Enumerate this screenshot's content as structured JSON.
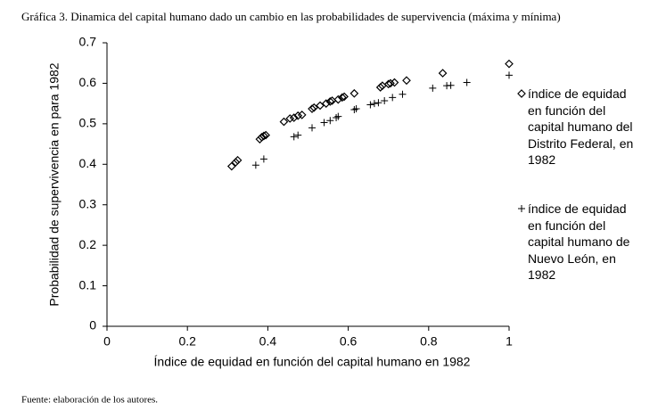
{
  "chart_data": {
    "type": "scatter",
    "title": "Gráfica 3. Dinamica del capital humano dado un cambio en las probabilidades de supervivencia (máxima y mínima)",
    "x_label": "Índice de equidad en función del capital humano en 1982",
    "y_label": "Probabilidad de supervivencia en para 1982",
    "source": "Fuente: elaboración de los autores.",
    "xlim": [
      0,
      1
    ],
    "xticks": [
      0,
      0.2,
      0.4,
      0.6,
      0.8,
      1
    ],
    "ylim": [
      0,
      0.7
    ],
    "yticks": [
      0,
      0.1,
      0.2,
      0.3,
      0.4,
      0.5,
      0.6,
      0.7
    ],
    "grid": false,
    "legend": "right",
    "series": [
      {
        "name": "índice de equidad en función del capital humano del Distrito Federal, en 1982",
        "marker": "diamond",
        "color": "#000000",
        "x": [
          0.31,
          0.32,
          0.325,
          0.38,
          0.385,
          0.39,
          0.395,
          0.44,
          0.455,
          0.465,
          0.475,
          0.485,
          0.51,
          0.515,
          0.53,
          0.545,
          0.555,
          0.56,
          0.575,
          0.585,
          0.59,
          0.615,
          0.68,
          0.685,
          0.7,
          0.705,
          0.715,
          0.745,
          0.835,
          1.0
        ],
        "values": [
          0.395,
          0.405,
          0.41,
          0.462,
          0.467,
          0.47,
          0.472,
          0.505,
          0.513,
          0.515,
          0.52,
          0.522,
          0.537,
          0.54,
          0.545,
          0.55,
          0.555,
          0.557,
          0.56,
          0.565,
          0.567,
          0.575,
          0.59,
          0.594,
          0.598,
          0.6,
          0.602,
          0.607,
          0.625,
          0.648
        ]
      },
      {
        "name": "índice de equidad en función del capital humano de Nuevo León, en 1982",
        "marker": "plus",
        "color": "#000000",
        "x": [
          0.37,
          0.39,
          0.465,
          0.475,
          0.51,
          0.54,
          0.555,
          0.57,
          0.575,
          0.615,
          0.62,
          0.655,
          0.665,
          0.675,
          0.69,
          0.71,
          0.735,
          0.81,
          0.845,
          0.855,
          0.895,
          1.0
        ],
        "values": [
          0.398,
          0.413,
          0.468,
          0.472,
          0.49,
          0.503,
          0.508,
          0.515,
          0.518,
          0.535,
          0.537,
          0.547,
          0.55,
          0.552,
          0.557,
          0.565,
          0.573,
          0.588,
          0.594,
          0.595,
          0.602,
          0.62
        ]
      }
    ]
  }
}
